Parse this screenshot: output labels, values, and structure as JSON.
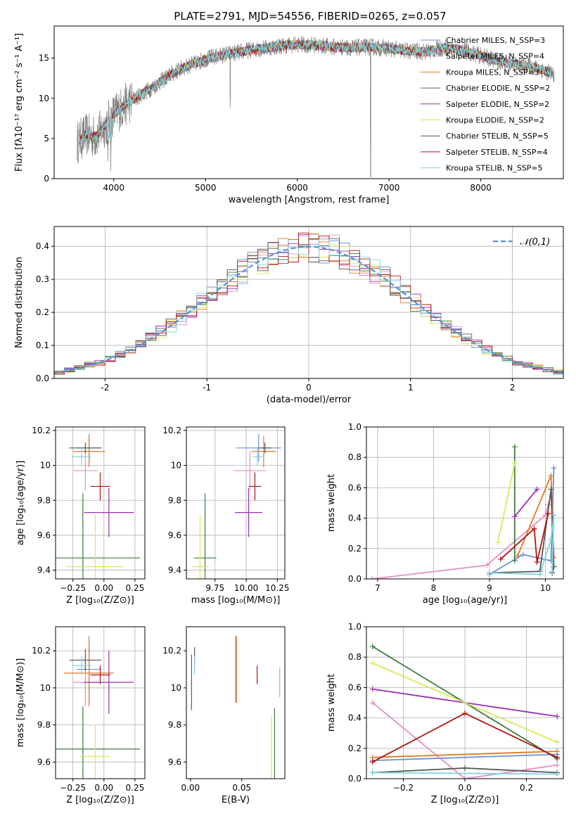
{
  "colors": {
    "miles": [
      "#6b8fd6",
      "#e58fc2",
      "#e07a1f"
    ],
    "elodie": [
      "#3d7a3d",
      "#9a2fb3",
      "#d9e85a"
    ],
    "stelib": [
      "#555555",
      "#b01515",
      "#7fd3dd"
    ],
    "spectrum": "#808080",
    "normal": "#5b8fd6"
  },
  "chart_data": [
    {
      "id": "spectrum",
      "type": "line",
      "title": "PLATE=2791, MJD=54556, FIBERID=0265, z=0.057",
      "xlabel": "wavelength [Angstrom, rest frame]",
      "ylabel": "Flux [fλ10⁻¹⁷ erg cm⁻² s⁻¹ A⁻¹]",
      "xlim": [
        3350,
        8900
      ],
      "ylim": [
        0,
        19
      ],
      "xticks": [
        4000,
        5000,
        6000,
        7000,
        8000
      ],
      "yticks": [
        0,
        5,
        10,
        15
      ],
      "legend_position": "top-right",
      "legend": [
        "Chabrier MILES, N_SSP=3",
        "Salpeter MILES, N_SSP=4",
        "Kroupa MILES, N_SSP=3",
        "Chabrier ELODIE, N_SSP=2",
        "Salpeter ELODIE, N_SSP=2",
        "Kroupa ELODIE, N_SSP=2",
        "Chabrier STELIB, N_SSP=5",
        "Salpeter STELIB, N_SSP=4",
        "Kroupa STELIB, N_SSP=5"
      ],
      "continuum": {
        "x": [
          3600,
          3700,
          3800,
          3900,
          4000,
          4100,
          4200,
          4300,
          4400,
          4500,
          4600,
          4700,
          4800,
          4900,
          5000,
          5200,
          5400,
          5600,
          5800,
          6000,
          6200,
          6400,
          6600,
          6800,
          7000,
          7200,
          7400,
          7600,
          7800,
          8000,
          8200,
          8400,
          8600,
          8800
        ],
        "y": [
          4.5,
          5.5,
          5.2,
          6.5,
          8.0,
          9.0,
          9.8,
          10.5,
          11.2,
          12.0,
          12.8,
          13.5,
          14.0,
          14.4,
          14.9,
          15.4,
          15.8,
          16.2,
          16.5,
          16.7,
          16.6,
          16.4,
          16.3,
          16.4,
          16.2,
          15.9,
          15.8,
          16.3,
          16.0,
          15.3,
          14.6,
          14.2,
          13.8,
          13.0
        ]
      }
    },
    {
      "id": "residuals",
      "type": "histogram",
      "xlabel": "(data-model)/error",
      "ylabel": "Normed distribution",
      "xlim": [
        -2.5,
        2.5
      ],
      "ylim": [
        0,
        0.46
      ],
      "xticks": [
        -2,
        -1,
        0,
        1,
        2
      ],
      "yticks": [
        0.0,
        0.1,
        0.2,
        0.3,
        0.4
      ],
      "grid": true,
      "legend_position": "top-right",
      "legend": [
        "𝒩(0,1)"
      ],
      "normal": {
        "mean": 0,
        "sigma": 1
      },
      "bin_width": 0.1
    },
    {
      "id": "age_Z",
      "type": "errorbar",
      "xlabel": "Z [log₁₀(Z/Z⊙)]",
      "ylabel": "age  [log₁₀(age/yr)]",
      "xlim": [
        -0.39,
        0.33
      ],
      "ylim": [
        9.35,
        10.22
      ],
      "xticks": [
        -0.25,
        0.0,
        0.25
      ],
      "xticklabels": [
        "−0.25",
        "0.00",
        "0.25"
      ],
      "yticks": [
        9.4,
        9.6,
        9.8,
        10.0,
        10.2
      ],
      "grid": true,
      "points": [
        {
          "series": 0,
          "x": -0.12,
          "xerr": 0.1,
          "y": 10.1,
          "yerr": 0.08
        },
        {
          "series": 1,
          "x": -0.15,
          "xerr": 0.1,
          "y": 9.97,
          "yerr": 0.11
        },
        {
          "series": 2,
          "x": -0.12,
          "xerr": 0.13,
          "y": 10.08,
          "yerr": 0.09
        },
        {
          "series": 3,
          "x": -0.17,
          "xerr": 0.46,
          "y": 9.47,
          "yerr": 0.37
        },
        {
          "series": 4,
          "x": 0.04,
          "xerr": 0.2,
          "y": 9.73,
          "yerr": 0.14
        },
        {
          "series": 5,
          "x": -0.07,
          "xerr": 0.23,
          "y": 9.42,
          "yerr": 0.3
        },
        {
          "series": 6,
          "x": -0.15,
          "xerr": 0.13,
          "y": 10.1,
          "yerr": 0.03
        },
        {
          "series": 7,
          "x": -0.03,
          "xerr": 0.08,
          "y": 9.88,
          "yerr": 0.08
        },
        {
          "series": 8,
          "x": -0.18,
          "xerr": 0.08,
          "y": 10.05,
          "yerr": 0.05
        }
      ]
    },
    {
      "id": "age_mass",
      "type": "errorbar",
      "xlabel": "mass [log₁₀(M/M⊙)]",
      "ylabel": "",
      "xlim": [
        9.52,
        10.31
      ],
      "ylim": [
        9.35,
        10.22
      ],
      "xticks": [
        9.75,
        10.0,
        10.25
      ],
      "xticklabels": [
        "9.75",
        "10.00",
        "10.25"
      ],
      "yticks": [
        9.4,
        9.6,
        9.8,
        10.0,
        10.2
      ],
      "grid": true,
      "points": [
        {
          "series": 0,
          "x": 10.1,
          "xerr": 0.18,
          "y": 10.1,
          "yerr": 0.08
        },
        {
          "series": 1,
          "x": 10.03,
          "xerr": 0.13,
          "y": 9.97,
          "yerr": 0.11
        },
        {
          "series": 2,
          "x": 10.14,
          "xerr": 0.1,
          "y": 10.08,
          "yerr": 0.09
        },
        {
          "series": 3,
          "x": 9.67,
          "xerr": 0.09,
          "y": 9.47,
          "yerr": 0.37
        },
        {
          "series": 4,
          "x": 10.02,
          "xerr": 0.11,
          "y": 9.73,
          "yerr": 0.14
        },
        {
          "series": 5,
          "x": 9.63,
          "xerr": 0.07,
          "y": 9.42,
          "yerr": 0.3
        },
        {
          "series": 6,
          "x": 10.15,
          "xerr": 0.05,
          "y": 10.1,
          "yerr": 0.03
        },
        {
          "series": 7,
          "x": 10.07,
          "xerr": 0.05,
          "y": 9.88,
          "yerr": 0.08
        },
        {
          "series": 8,
          "x": 10.09,
          "xerr": 0.04,
          "y": 10.05,
          "yerr": 0.05
        }
      ]
    },
    {
      "id": "weight_age",
      "type": "line",
      "xlabel": "age  [log₁₀(age/yr)]",
      "ylabel": "mass weight",
      "xlim": [
        6.8,
        10.32
      ],
      "ylim": [
        0,
        1
      ],
      "xticks": [
        7,
        8,
        9,
        10
      ],
      "yticks": [
        0.0,
        0.2,
        0.4,
        0.6,
        0.8,
        1.0
      ],
      "grid": true,
      "series": [
        {
          "x": [
            9.0,
            9.6,
            10.1,
            10.15
          ],
          "y": [
            0.03,
            0.16,
            0.12,
            0.73
          ]
        },
        {
          "x": [
            6.9,
            8.95,
            10.0,
            10.05
          ],
          "y": [
            0.0,
            0.09,
            0.42,
            0.49
          ]
        },
        {
          "x": [
            9.5,
            10.1,
            10.15
          ],
          "y": [
            0.15,
            0.68,
            0.14
          ]
        },
        {
          "x": [
            9.45,
            9.45
          ],
          "y": [
            0.87,
            0.12
          ]
        },
        {
          "x": [
            9.45,
            9.85
          ],
          "y": [
            0.41,
            0.59
          ]
        },
        {
          "x": [
            9.15,
            9.45
          ],
          "y": [
            0.24,
            0.76
          ]
        },
        {
          "x": [
            9.0,
            9.9,
            10.1,
            10.15,
            10.12
          ],
          "y": [
            0.04,
            0.05,
            0.59,
            0.08,
            0.04
          ]
        },
        {
          "x": [
            9.2,
            9.8,
            9.85,
            10.05
          ],
          "y": [
            0.13,
            0.33,
            0.11,
            0.43
          ]
        },
        {
          "x": [
            9.0,
            9.9,
            10.1,
            10.15,
            10.12
          ],
          "y": [
            0.04,
            0.03,
            0.26,
            0.42,
            0.05
          ]
        }
      ]
    },
    {
      "id": "mass_Z",
      "type": "errorbar",
      "xlabel": "Z [log₁₀(Z/Z⊙)]",
      "ylabel": "mass [log₁₀(M/M⊙)]",
      "xlim": [
        -0.39,
        0.33
      ],
      "ylim": [
        9.51,
        10.33
      ],
      "xticks": [
        -0.25,
        0.0,
        0.25
      ],
      "xticklabels": [
        "−0.25",
        "0.00",
        "0.25"
      ],
      "yticks": [
        9.6,
        9.8,
        10.0,
        10.2
      ],
      "grid": true,
      "points": [
        {
          "series": 0,
          "x": -0.12,
          "xerr": 0.1,
          "y": 10.1,
          "yerr": 0.18
        },
        {
          "series": 1,
          "x": -0.15,
          "xerr": 0.1,
          "y": 10.03,
          "yerr": 0.13
        },
        {
          "series": 2,
          "x": -0.12,
          "xerr": 0.2,
          "y": 10.08,
          "yerr": 0.18
        },
        {
          "series": 3,
          "x": -0.17,
          "xerr": 0.46,
          "y": 9.67,
          "yerr": 0.23
        },
        {
          "series": 4,
          "x": 0.04,
          "xerr": 0.2,
          "y": 10.03,
          "yerr": 0.17
        },
        {
          "series": 5,
          "x": -0.07,
          "xerr": 0.12,
          "y": 9.63,
          "yerr": 0.17
        },
        {
          "series": 6,
          "x": -0.15,
          "xerr": 0.13,
          "y": 10.15,
          "yerr": 0.06
        },
        {
          "series": 7,
          "x": -0.03,
          "xerr": 0.08,
          "y": 10.07,
          "yerr": 0.05
        },
        {
          "series": 8,
          "x": -0.18,
          "xerr": 0.08,
          "y": 10.12,
          "yerr": 0.05
        }
      ]
    },
    {
      "id": "mass_EBV",
      "type": "errorbar",
      "xlabel": "E(B-V)",
      "ylabel": "",
      "xlim": [
        -0.004,
        0.092
      ],
      "ylim": [
        9.51,
        10.33
      ],
      "xticks": [
        0.0,
        0.05
      ],
      "xticklabels": [
        "0.00",
        "0.05"
      ],
      "yticks": [
        9.6,
        9.8,
        10.0,
        10.2
      ],
      "grid": false,
      "points": [
        {
          "series": 0,
          "x": 0.044,
          "xerr": 0,
          "y": 10.1,
          "yerr": 0.18
        },
        {
          "series": 1,
          "x": 0.087,
          "xerr": 0,
          "y": 10.03,
          "yerr": 0.08
        },
        {
          "series": 2,
          "x": 0.045,
          "xerr": 0,
          "y": 10.1,
          "yerr": 0.18
        },
        {
          "series": 3,
          "x": 0.082,
          "xerr": 0,
          "y": 9.67,
          "yerr": 0.22
        },
        {
          "series": 4,
          "x": 0.001,
          "xerr": 0,
          "y": 10.03,
          "yerr": 0.15
        },
        {
          "series": 5,
          "x": 0.079,
          "xerr": 0,
          "y": 9.63,
          "yerr": 0.22
        },
        {
          "series": 6,
          "x": 0.004,
          "xerr": 0,
          "y": 10.17,
          "yerr": 0.05
        },
        {
          "series": 7,
          "x": 0.065,
          "xerr": 0,
          "y": 10.07,
          "yerr": 0.05
        },
        {
          "series": 8,
          "x": 0.004,
          "xerr": 0,
          "y": 10.12,
          "yerr": 0.05
        }
      ]
    },
    {
      "id": "weight_Z",
      "type": "line",
      "xlabel": "Z [log₁₀(Z/Z⊙)]",
      "ylabel": "mass weight",
      "xlim": [
        -0.32,
        0.32
      ],
      "ylim": [
        0,
        1
      ],
      "xticks": [
        -0.2,
        0.0,
        0.2
      ],
      "xticklabels": [
        "−0.2",
        "0.0",
        "0.2"
      ],
      "yticks": [
        0.0,
        0.2,
        0.4,
        0.6,
        0.8,
        1.0
      ],
      "grid": true,
      "series": [
        {
          "x": [
            -0.3,
            0.3
          ],
          "y": [
            0.12,
            0.16
          ]
        },
        {
          "x": [
            -0.3,
            0.0,
            0.3
          ],
          "y": [
            0.5,
            0.0,
            0.09
          ]
        },
        {
          "x": [
            -0.3,
            0.3
          ],
          "y": [
            0.14,
            0.18
          ]
        },
        {
          "x": [
            -0.3,
            0.3
          ],
          "y": [
            0.87,
            0.13
          ]
        },
        {
          "x": [
            -0.3,
            0.3
          ],
          "y": [
            0.59,
            0.41
          ]
        },
        {
          "x": [
            -0.3,
            0.3
          ],
          "y": [
            0.76,
            0.24
          ]
        },
        {
          "x": [
            -0.3,
            0.0,
            0.3
          ],
          "y": [
            0.04,
            0.07,
            0.04
          ]
        },
        {
          "x": [
            -0.3,
            0.0,
            0.3
          ],
          "y": [
            0.11,
            0.43,
            0.14
          ]
        },
        {
          "x": [
            -0.3,
            0.3
          ],
          "y": [
            0.04,
            0.03
          ]
        }
      ]
    }
  ]
}
